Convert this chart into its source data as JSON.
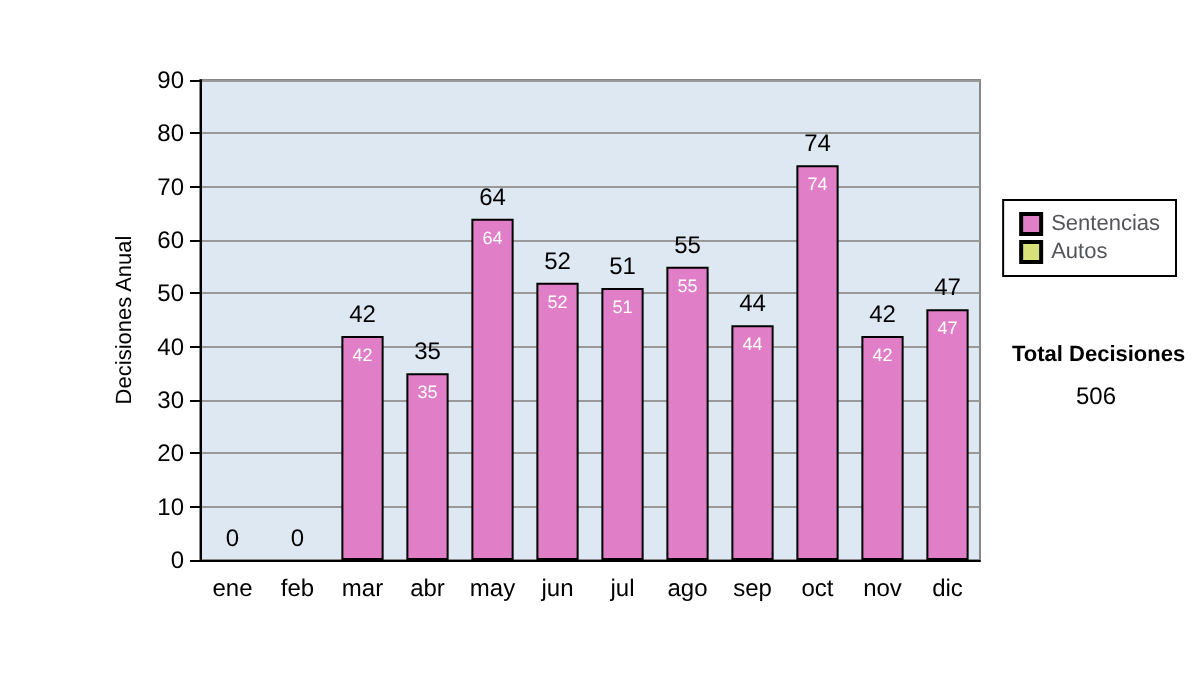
{
  "chart_data": {
    "type": "bar",
    "ylabel": "Decisiones Anual",
    "categories": [
      "ene",
      "feb",
      "mar",
      "abr",
      "may",
      "jun",
      "jul",
      "ago",
      "sep",
      "oct",
      "nov",
      "dic"
    ],
    "series": [
      {
        "name": "Sentencias",
        "color": "#e07fc8",
        "values": [
          0,
          0,
          42,
          35,
          64,
          52,
          51,
          55,
          44,
          74,
          42,
          47
        ],
        "value_labels": [
          null,
          null,
          "42",
          "35",
          "64",
          "52",
          "51",
          "55",
          "44",
          "74",
          "42",
          "47"
        ]
      },
      {
        "name": "Autos",
        "color": "#d8e07a",
        "values": [
          0,
          0,
          0,
          0,
          0,
          0,
          0,
          0,
          0,
          0,
          0,
          0
        ]
      }
    ],
    "stacked": true,
    "totals": [
      "0",
      "0",
      "42",
      "35",
      "64",
      "52",
      "51",
      "55",
      "44",
      "74",
      "42",
      "47"
    ],
    "ylim": [
      0,
      90
    ],
    "yticks": [
      0,
      10,
      20,
      30,
      40,
      50,
      60,
      70,
      80,
      90
    ],
    "grid": "y",
    "legend": "right",
    "annotations": [
      "Total Decisiones",
      "506"
    ]
  }
}
